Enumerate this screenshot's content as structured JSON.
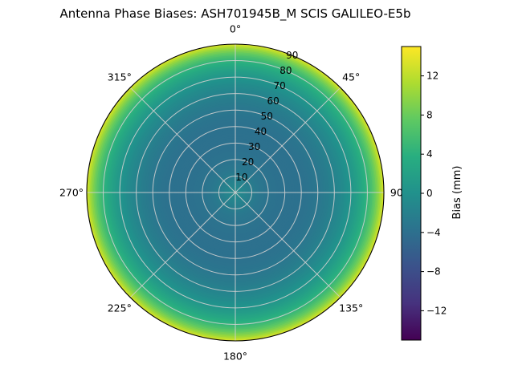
{
  "title": "Antenna Phase Biases: ASH701945B_M    SCIS GALILEO-E5b",
  "colors": {
    "background": "#ffffff",
    "grid": "#cfcfcf",
    "spine": "#000000",
    "text": "#000000"
  },
  "chart_data": {
    "type": "heatmap",
    "projection": "polar",
    "title": "Antenna Phase Biases: ASH701945B_M    SCIS GALILEO-E5b",
    "azimuth_labels": [
      {
        "angle": 0,
        "label": "0°"
      },
      {
        "angle": 45,
        "label": "45°"
      },
      {
        "angle": 90,
        "label": "90°"
      },
      {
        "angle": 135,
        "label": "135°"
      },
      {
        "angle": 180,
        "label": "180°"
      },
      {
        "angle": 225,
        "label": "225°"
      },
      {
        "angle": 270,
        "label": "270°"
      },
      {
        "angle": 315,
        "label": "315°"
      }
    ],
    "radial_ticks": [
      10,
      20,
      30,
      40,
      50,
      60,
      70,
      80,
      90
    ],
    "radial_tick_angle_deg": 22.5,
    "radial_axis": "zenith angle (deg)",
    "colormap": "viridis",
    "azimuthally_symmetric": true,
    "colorbar": {
      "label": "Bias (mm)",
      "ticks": [
        12,
        8,
        4,
        0,
        -4,
        -8,
        -12
      ],
      "vmin": -15,
      "vmax": 15
    },
    "radial_profile": {
      "zenith_deg": [
        0,
        5,
        10,
        15,
        20,
        25,
        30,
        35,
        40,
        45,
        50,
        55,
        60,
        65,
        70,
        75,
        80,
        83,
        86,
        88,
        90
      ],
      "bias_mm": [
        -0.5,
        -1.5,
        -2.5,
        -3.2,
        -3.6,
        -3.8,
        -3.9,
        -3.9,
        -3.8,
        -3.6,
        -3.2,
        -2.6,
        -1.8,
        -0.8,
        0.5,
        2.2,
        4.5,
        6.5,
        9.0,
        11.0,
        13.5
      ]
    },
    "viridis_anchors": [
      [
        0.0,
        "#440154"
      ],
      [
        0.125,
        "#46327e"
      ],
      [
        0.25,
        "#3b528b"
      ],
      [
        0.375,
        "#2c728e"
      ],
      [
        0.5,
        "#21918c"
      ],
      [
        0.625,
        "#28ae80"
      ],
      [
        0.75,
        "#5ec962"
      ],
      [
        0.875,
        "#addc30"
      ],
      [
        1.0,
        "#fde725"
      ]
    ]
  }
}
